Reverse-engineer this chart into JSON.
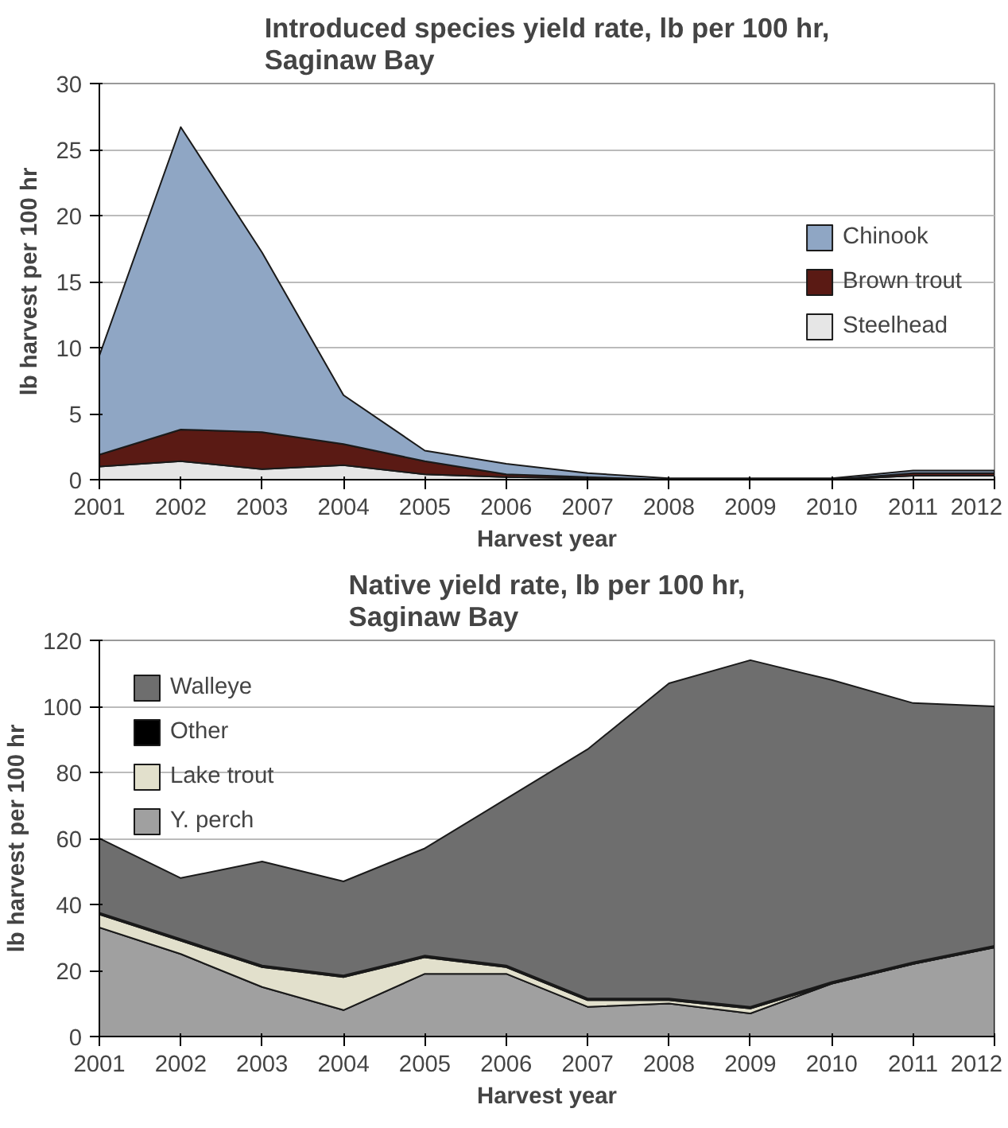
{
  "chart_data": [
    {
      "type": "area",
      "stacked": true,
      "title": "Introduced species yield rate, lb per 100 hr,\nSaginaw Bay",
      "xlabel": "Harvest year",
      "ylabel": "lb harvest per 100 hr",
      "x": [
        2001,
        2002,
        2003,
        2004,
        2005,
        2006,
        2007,
        2008,
        2009,
        2010,
        2011,
        2012
      ],
      "xlim": [
        2001,
        2012
      ],
      "xticks": [
        2001,
        2002,
        2003,
        2004,
        2005,
        2006,
        2007,
        2008,
        2009,
        2010,
        2011,
        2012
      ],
      "ylim": [
        0,
        30
      ],
      "yticks": [
        0,
        5,
        10,
        15,
        20,
        25,
        30
      ],
      "grid": "y",
      "legend": "right",
      "series": [
        {
          "name": "Steelhead",
          "color": "#e6e6e6",
          "values": [
            1.0,
            1.4,
            0.8,
            1.1,
            0.4,
            0.2,
            0.1,
            0,
            0,
            0,
            0.3,
            0.3
          ]
        },
        {
          "name": "Brown trout",
          "color": "#5a1a14",
          "values": [
            0.9,
            2.4,
            2.8,
            1.6,
            1.0,
            0.2,
            0.1,
            0,
            0,
            0,
            0.2,
            0.2
          ]
        },
        {
          "name": "Chinook",
          "color": "#8fa6c4",
          "values": [
            7.5,
            22.9,
            13.6,
            3.7,
            0.8,
            0.8,
            0.3,
            0.1,
            0.1,
            0.1,
            0.2,
            0.2
          ]
        }
      ]
    },
    {
      "type": "area",
      "stacked": true,
      "title": "Native yield rate, lb per 100 hr,\nSaginaw Bay",
      "xlabel": "Harvest year",
      "ylabel": "lb harvest per 100 hr",
      "x": [
        2001,
        2002,
        2003,
        2004,
        2005,
        2006,
        2007,
        2008,
        2009,
        2010,
        2011,
        2012
      ],
      "xlim": [
        2001,
        2012
      ],
      "xticks": [
        2001,
        2002,
        2003,
        2004,
        2005,
        2006,
        2007,
        2008,
        2009,
        2010,
        2011,
        2012
      ],
      "ylim": [
        0,
        120
      ],
      "yticks": [
        0,
        20,
        40,
        60,
        80,
        100,
        120
      ],
      "grid": "y",
      "legend": "top left",
      "series": [
        {
          "name": "Y. perch",
          "color": "#a0a0a0",
          "values": [
            33,
            25,
            15,
            8,
            19,
            19,
            9,
            10,
            7,
            16,
            22,
            27
          ]
        },
        {
          "name": "Lake trout",
          "color": "#e2e0cc",
          "values": [
            4,
            4,
            6,
            10,
            5,
            2,
            2,
            1,
            1.5,
            0,
            0,
            0
          ]
        },
        {
          "name": "Other",
          "color": "#000000",
          "values": [
            0.5,
            0.5,
            0.5,
            0.5,
            0.5,
            0.5,
            0.5,
            0.5,
            0.5,
            0.5,
            0.5,
            0.5
          ]
        },
        {
          "name": "Walleye",
          "color": "#6e6e6e",
          "values": [
            22.5,
            18.5,
            31.5,
            28.5,
            32.5,
            50.5,
            75.5,
            95.5,
            105,
            91.5,
            78.5,
            72.5
          ]
        }
      ]
    }
  ]
}
